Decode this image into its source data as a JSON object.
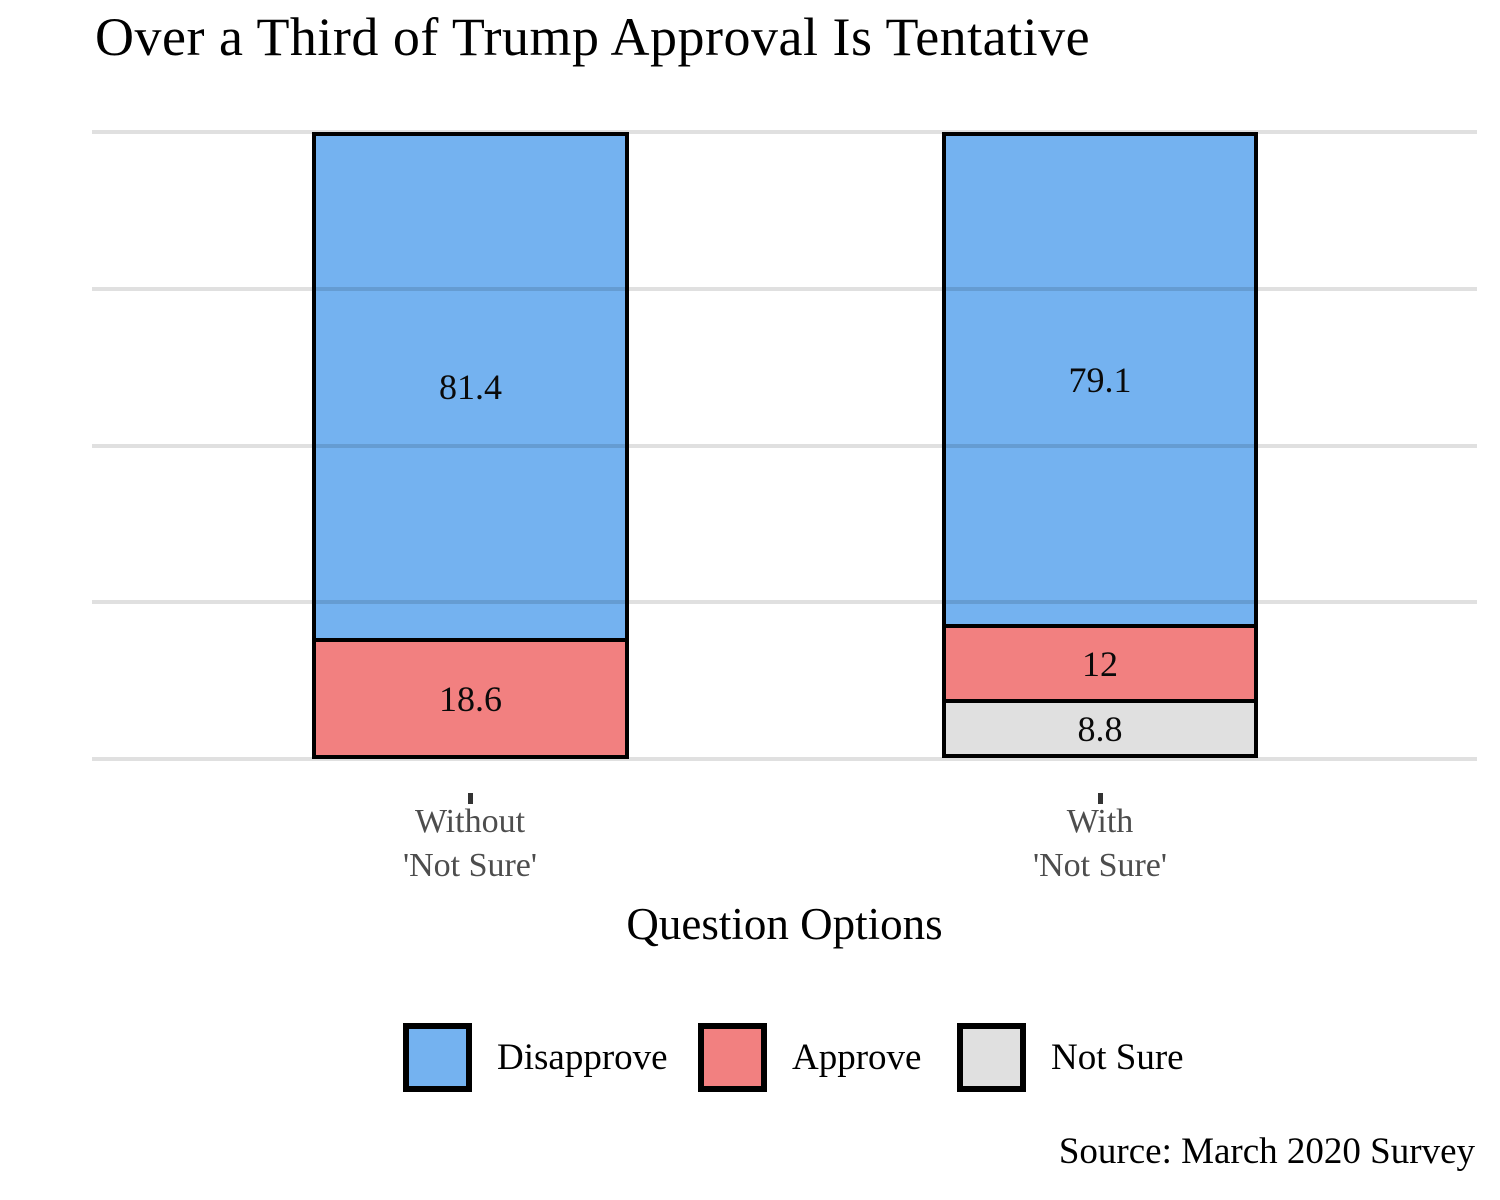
{
  "title": "Over a Third of Trump Approval Is Tentative",
  "axis": {
    "xlabel": "Question Options"
  },
  "source": "Source: March 2020 Survey",
  "colors": {
    "disapprove": "#74B2F0",
    "approve": "#F28080",
    "not_sure": "#E0E0E0",
    "bar_border": "#000000",
    "gridline": "#DEDEDE",
    "category_label": "#4D4D4D"
  },
  "bars": [
    {
      "category_line1": "Without",
      "category_line2": "'Not Sure'",
      "segments": [
        {
          "name": "Disapprove",
          "value": 81.4,
          "label": "81.4",
          "color_key": "disapprove"
        },
        {
          "name": "Approve",
          "value": 18.6,
          "label": "18.6",
          "color_key": "approve"
        }
      ]
    },
    {
      "category_line1": "With",
      "category_line2": "'Not Sure'",
      "segments": [
        {
          "name": "Disapprove",
          "value": 79.1,
          "label": "79.1",
          "color_key": "disapprove"
        },
        {
          "name": "Approve",
          "value": 12,
          "label": "12",
          "color_key": "approve"
        },
        {
          "name": "Not Sure",
          "value": 8.8,
          "label": "8.8",
          "color_key": "not_sure"
        }
      ]
    }
  ],
  "legend": [
    {
      "label": "Disapprove",
      "color_key": "disapprove"
    },
    {
      "label": "Approve",
      "color_key": "approve"
    },
    {
      "label": "Not Sure",
      "color_key": "not_sure"
    }
  ],
  "chart_data": {
    "type": "bar",
    "stacked": true,
    "title": "Over a Third of Trump Approval Is Tentative",
    "xlabel": "Question Options",
    "ylabel": "",
    "ylim": [
      0,
      100
    ],
    "gridline_interval": 25,
    "grid": true,
    "legend_position": "bottom",
    "categories": [
      "Without 'Not Sure'",
      "With 'Not Sure'"
    ],
    "series": [
      {
        "name": "Disapprove",
        "values": [
          81.4,
          79.1
        ]
      },
      {
        "name": "Approve",
        "values": [
          18.6,
          12
        ]
      },
      {
        "name": "Not Sure",
        "values": [
          0,
          8.8
        ]
      }
    ],
    "data_labels": [
      [
        "81.4",
        "18.6"
      ],
      [
        "79.1",
        "12",
        "8.8"
      ]
    ],
    "source": "Source: March 2020 Survey"
  }
}
